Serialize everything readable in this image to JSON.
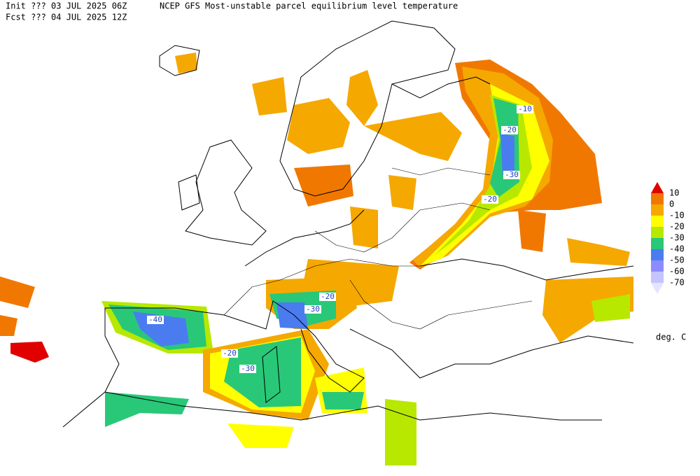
{
  "header": {
    "init": "Init  ??? 03 JUL 2025 06Z",
    "title": "NCEP GFS Most-unstable parcel equilibrium level temperature",
    "forecast": "Fcst ??? 04 JUL 2025 12Z"
  },
  "legend": {
    "labels": [
      "10",
      "0",
      "-10",
      "-20",
      "-30",
      "-40",
      "-50",
      "-60",
      "-70"
    ],
    "colors": [
      "#e00000",
      "#f07800",
      "#f5a800",
      "#ffff00",
      "#b8e800",
      "#28c878",
      "#4a7cf0",
      "#8c8cff",
      "#c4c4ff",
      "#e4e4ff"
    ],
    "units": "deg. C"
  },
  "contour_labels": [
    "-10",
    "-20",
    "-30",
    "-20",
    "-20",
    "-30",
    "-40",
    "-20",
    "-30"
  ]
}
